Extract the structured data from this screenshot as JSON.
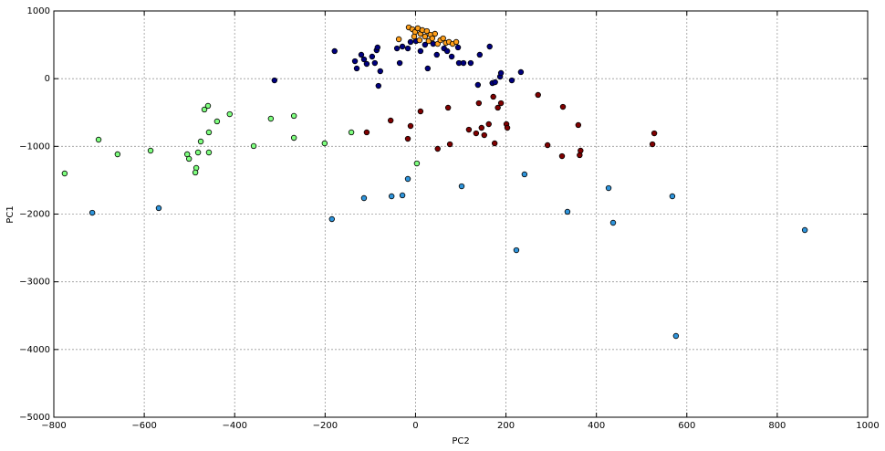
{
  "chart_data": {
    "type": "scatter",
    "x_label": "PC2",
    "y_label": "PC1",
    "xlim": [
      -800,
      1000
    ],
    "ylim": [
      -5000,
      1000
    ],
    "grid": true,
    "xticks": [
      {
        "value": -800,
        "label": "−800"
      },
      {
        "value": -600,
        "label": "−600"
      },
      {
        "value": -400,
        "label": "−400"
      },
      {
        "value": -200,
        "label": "−200"
      },
      0,
      200,
      400,
      600,
      800,
      1000
    ],
    "yticks": [
      {
        "value": -5000,
        "label": "−5000"
      },
      {
        "value": -4000,
        "label": "−4000"
      },
      {
        "value": -3000,
        "label": "−3000"
      },
      {
        "value": -2000,
        "label": "−2000"
      },
      {
        "value": -1000,
        "label": "−1000"
      },
      0,
      1000
    ],
    "series": [
      {
        "color": "#7fff7f",
        "x": [
          -776,
          -701,
          -659,
          -586,
          -505,
          -501,
          -485,
          -481,
          -487,
          -475,
          -467,
          -459,
          -457,
          -457,
          -439,
          -411,
          -358,
          -320,
          -269,
          -269,
          -201,
          -142,
          3
        ],
        "values": [
          -1400,
          -901,
          -1117,
          -1063,
          -1117,
          -1184,
          -1319,
          -1090,
          -1386,
          -928,
          -456,
          -402,
          -793,
          -1090,
          -631,
          -524,
          -995,
          -591,
          -550,
          -874,
          -955,
          -793,
          -1252
        ]
      },
      {
        "color": "#2f95dc",
        "x": [
          -715,
          -568,
          -185,
          -114,
          -53,
          -29,
          -17,
          102,
          241,
          223,
          336,
          427,
          437,
          568,
          576,
          861
        ],
        "values": [
          -1980,
          -1912,
          -2074,
          -1764,
          -1737,
          -1723,
          -1481,
          -1589,
          -1413,
          -2533,
          -1966,
          -1616,
          -2128,
          -1737,
          -3800,
          -2236
        ]
      },
      {
        "color": "#800000",
        "x": [
          -108,
          -55,
          -17,
          -11,
          11,
          49,
          72,
          76,
          118,
          134,
          140,
          146,
          152,
          162,
          172,
          175,
          182,
          189,
          201,
          203,
          271,
          292,
          324,
          326,
          360,
          363,
          365,
          524,
          528
        ],
        "values": [
          -793,
          -618,
          -888,
          -699,
          -483,
          -1036,
          -429,
          -969,
          -753,
          -807,
          -362,
          -726,
          -834,
          -672,
          -267,
          -955,
          -429,
          -362,
          -672,
          -726,
          -240,
          -982,
          -1144,
          -416,
          -685,
          -1130,
          -1063,
          -969,
          -807
        ]
      },
      {
        "color": "#00007f",
        "x": [
          -312,
          -179,
          -134,
          -130,
          -120,
          -114,
          -108,
          -96,
          -90,
          -86,
          -84,
          -82,
          -78,
          -41,
          -35,
          -29,
          -17,
          -11,
          1,
          11,
          21,
          27,
          39,
          47,
          63,
          70,
          80,
          94,
          96,
          106,
          122,
          142,
          138,
          164,
          170,
          176,
          187,
          189,
          213,
          233
        ],
        "values": [
          -25,
          407,
          258,
          151,
          353,
          285,
          218,
          326,
          231,
          420,
          461,
          -106,
          110,
          447,
          231,
          474,
          447,
          542,
          555,
          407,
          501,
          151,
          514,
          353,
          447,
          407,
          326,
          461,
          231,
          231,
          231,
          353,
          -92,
          474,
          -65,
          -52,
          29,
          83,
          -25,
          97
        ]
      },
      {
        "color": "#ff9f1a",
        "x": [
          -37,
          -15,
          -7,
          -1,
          5,
          11,
          15,
          21,
          25,
          29,
          33,
          37,
          43,
          49,
          55,
          61,
          67,
          74,
          82,
          90,
          9,
          -3
        ],
        "values": [
          582,
          757,
          730,
          690,
          744,
          663,
          717,
          622,
          703,
          555,
          649,
          595,
          663,
          514,
          568,
          595,
          528,
          542,
          514,
          542,
          568,
          622
        ]
      }
    ]
  }
}
